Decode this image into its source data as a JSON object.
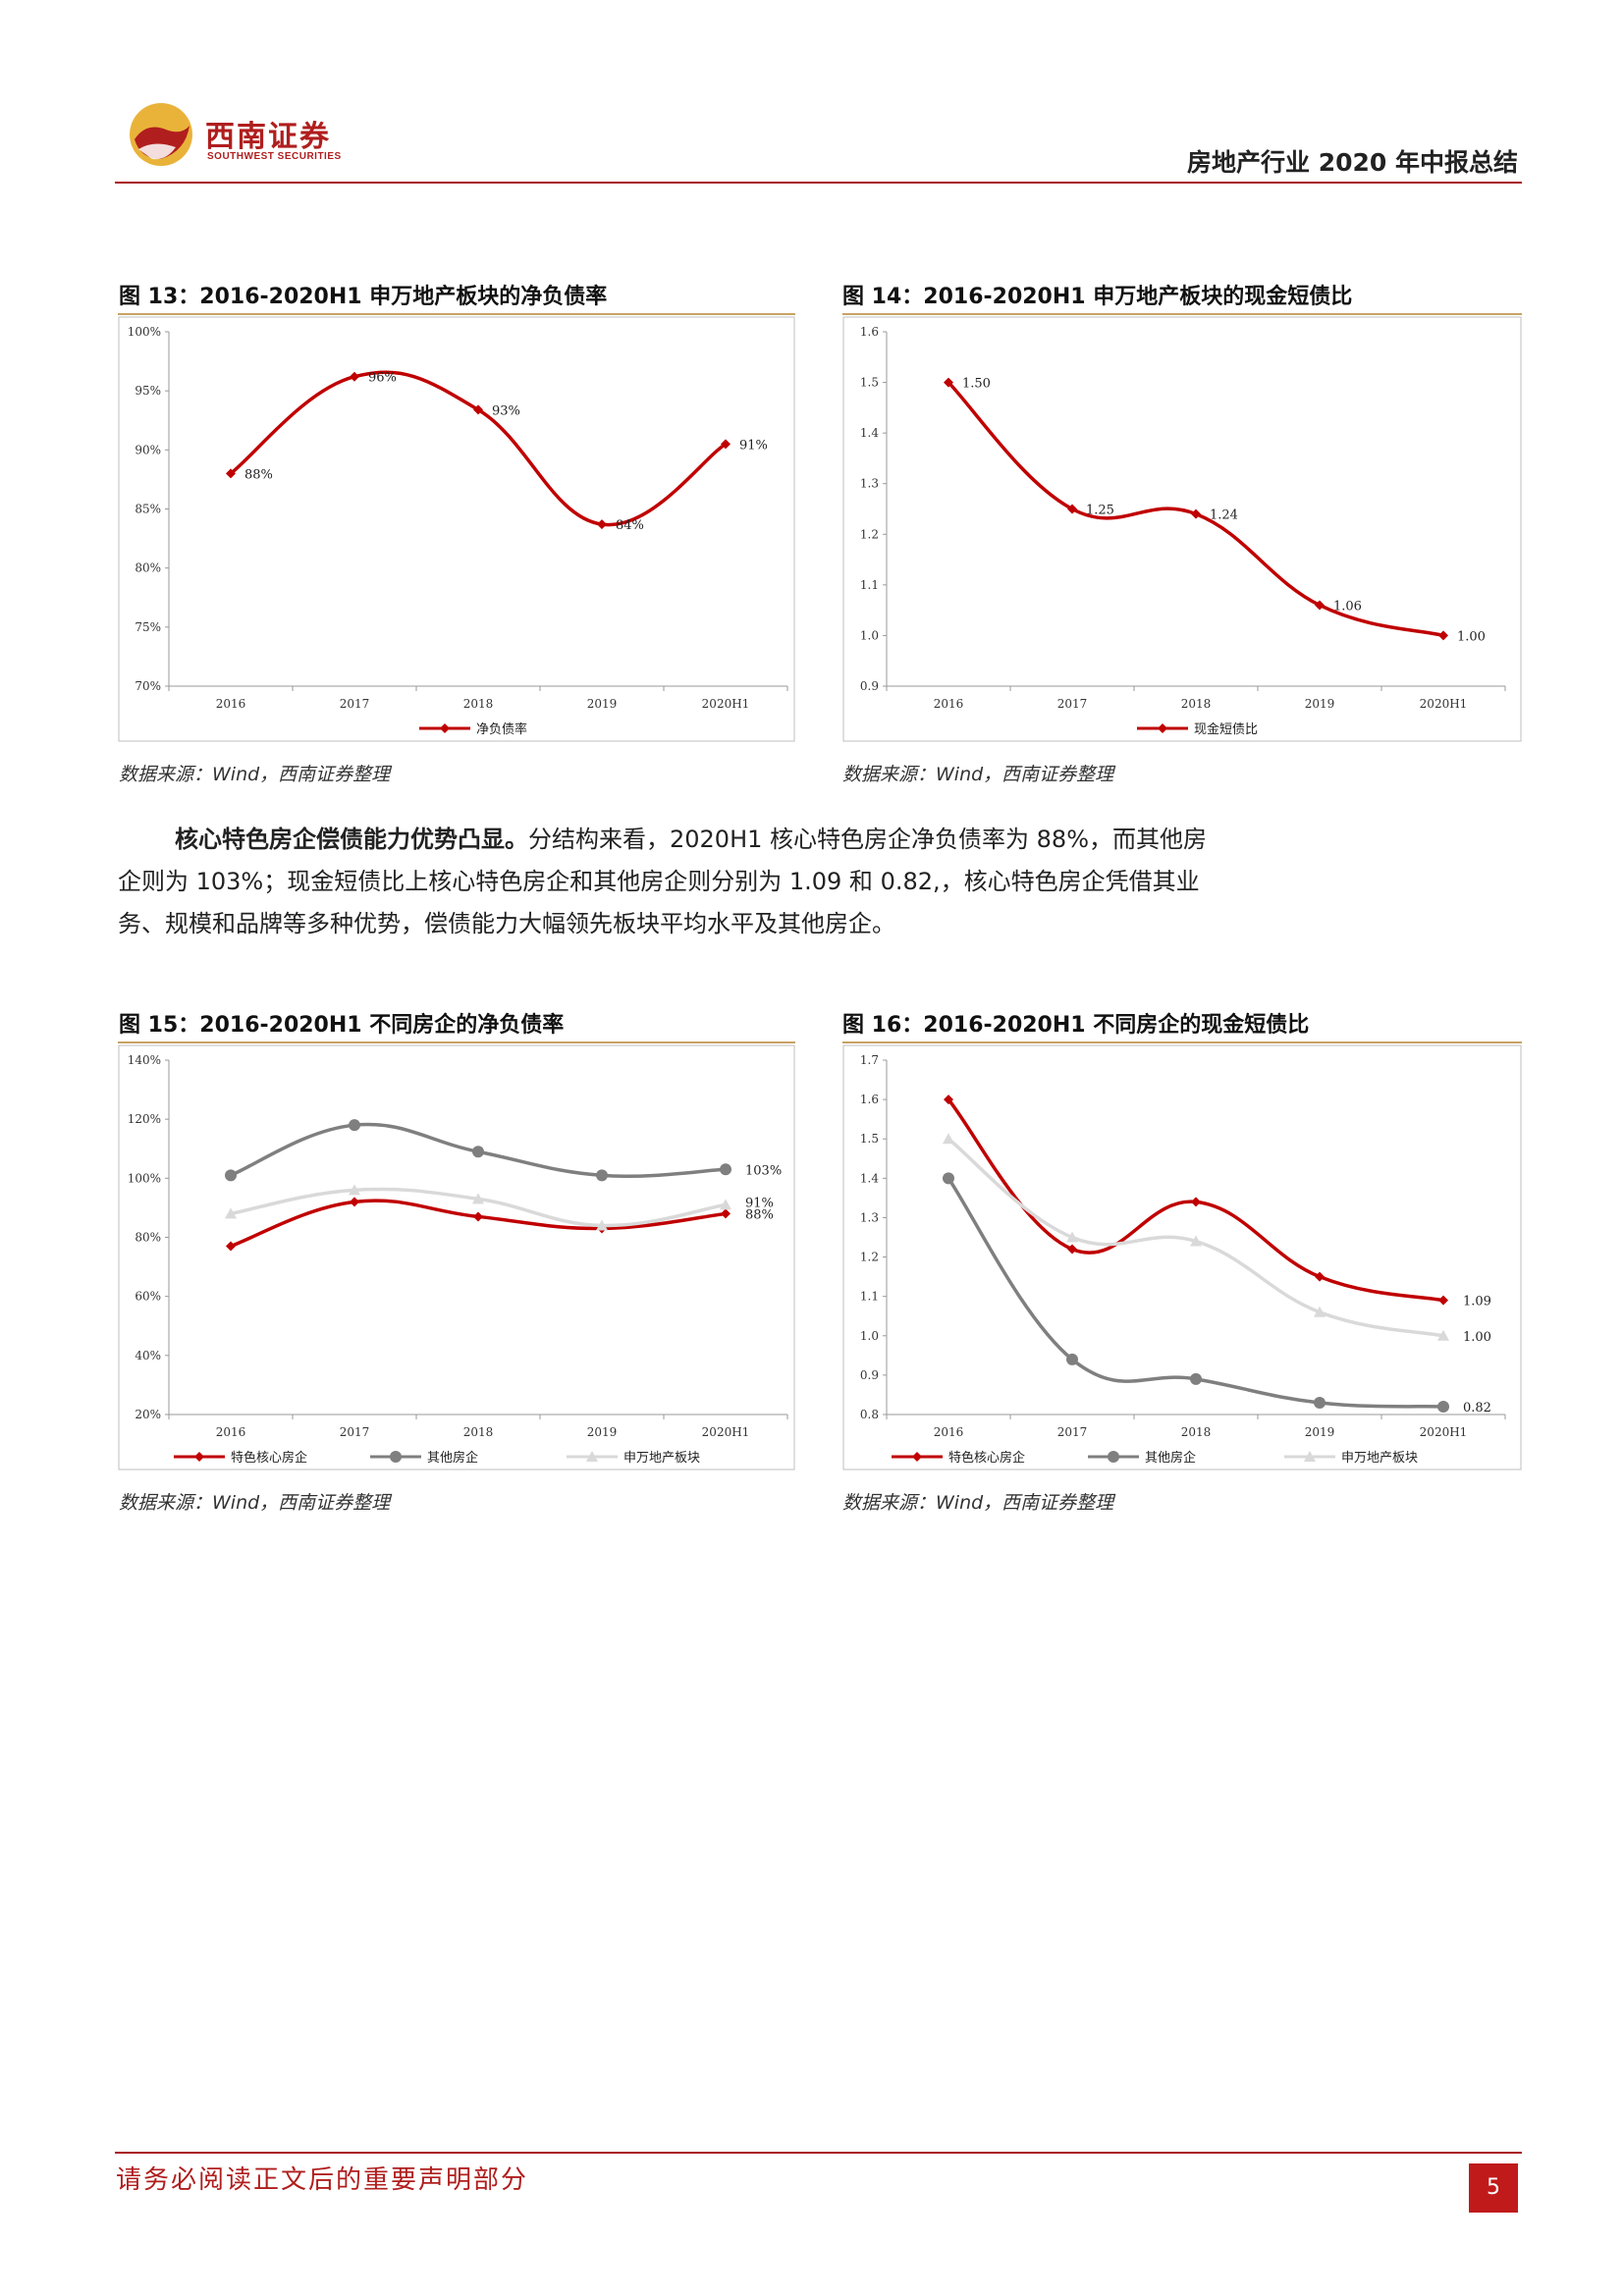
{
  "header": {
    "logo_cn": "西南证券",
    "logo_en": "SOUTHWEST SECURITIES",
    "doc_title": "房地产行业 2020 年中报总结"
  },
  "figures": [
    {
      "title": "图 13：2016-2020H1 申万地产板块的净负债率",
      "source": "数据来源：Wind，西南证券整理"
    },
    {
      "title": "图 14：2016-2020H1 申万地产板块的现金短债比",
      "source": "数据来源：Wind，西南证券整理"
    },
    {
      "title": "图 15：2016-2020H1 不同房企的净负债率",
      "source": "数据来源：Wind，西南证券整理"
    },
    {
      "title": "图 16：2016-2020H1 不同房企的现金短债比",
      "source": "数据来源：Wind，西南证券整理"
    }
  ],
  "paragraph": {
    "lead": "核心特色房企偿债能力优势凸显。",
    "body": "分结构来看，2020H1 核心特色房企净负债率为 88%，而其他房企则为 103%；现金短债比上核心特色房企和其他房企则分别为 1.09 和 0.82,，核心特色房企凭借其业务、规模和品牌等多种优势，偿债能力大幅领先板块平均水平及其他房企。"
  },
  "chart_data": [
    {
      "type": "line",
      "categories": [
        "2016",
        "2017",
        "2018",
        "2019",
        "2020H1"
      ],
      "y_ticks": [
        "70%",
        "75%",
        "80%",
        "85%",
        "90%",
        "95%",
        "100%"
      ],
      "ylim": [
        70,
        100
      ],
      "series": [
        {
          "name": "净负债率",
          "values": [
            88,
            96.2,
            93.4,
            83.7,
            90.5
          ],
          "labels": [
            "88%",
            "96%",
            "93%",
            "84%",
            "91%"
          ],
          "color": "#c00000",
          "marker": "diamond"
        }
      ],
      "legend": "bottom"
    },
    {
      "type": "line",
      "categories": [
        "2016",
        "2017",
        "2018",
        "2019",
        "2020H1"
      ],
      "y_ticks": [
        "0.9",
        "1.0",
        "1.1",
        "1.2",
        "1.3",
        "1.4",
        "1.5",
        "1.6"
      ],
      "ylim": [
        0.9,
        1.6
      ],
      "series": [
        {
          "name": "现金短债比",
          "values": [
            1.5,
            1.25,
            1.24,
            1.06,
            1.0
          ],
          "labels": [
            "1.50",
            "1.25",
            "1.24",
            "1.06",
            "1.00"
          ],
          "color": "#c00000",
          "marker": "diamond"
        }
      ],
      "legend": "bottom"
    },
    {
      "type": "line",
      "categories": [
        "2016",
        "2017",
        "2018",
        "2019",
        "2020H1"
      ],
      "y_ticks": [
        "20%",
        "40%",
        "60%",
        "80%",
        "100%",
        "120%",
        "140%"
      ],
      "ylim": [
        20,
        140
      ],
      "series": [
        {
          "name": "特色核心房企",
          "values": [
            77,
            92,
            87,
            83,
            88
          ],
          "end_label": "88%",
          "color": "#c00000",
          "marker": "diamond"
        },
        {
          "name": "其他房企",
          "values": [
            101,
            118,
            109,
            101,
            103
          ],
          "end_label": "103%",
          "color": "#7f7f7f",
          "marker": "circle"
        },
        {
          "name": "申万地产板块",
          "values": [
            88,
            96,
            93,
            84,
            91
          ],
          "end_label": "91%",
          "color": "#d9d9d9",
          "marker": "triangle"
        }
      ],
      "legend": "bottom"
    },
    {
      "type": "line",
      "categories": [
        "2016",
        "2017",
        "2018",
        "2019",
        "2020H1"
      ],
      "y_ticks": [
        "0.8",
        "0.9",
        "1.0",
        "1.1",
        "1.2",
        "1.3",
        "1.4",
        "1.5",
        "1.6",
        "1.7"
      ],
      "ylim": [
        0.8,
        1.7
      ],
      "series": [
        {
          "name": "特色核心房企",
          "values": [
            1.6,
            1.22,
            1.34,
            1.15,
            1.09
          ],
          "end_label": "1.09",
          "color": "#c00000",
          "marker": "diamond"
        },
        {
          "name": "其他房企",
          "values": [
            1.4,
            0.94,
            0.89,
            0.83,
            0.82
          ],
          "end_label": "0.82",
          "color": "#7f7f7f",
          "marker": "circle"
        },
        {
          "name": "申万地产板块",
          "values": [
            1.5,
            1.25,
            1.24,
            1.06,
            1.0
          ],
          "end_label": "1.00",
          "color": "#d9d9d9",
          "marker": "triangle"
        }
      ],
      "legend": "bottom"
    }
  ],
  "footer": {
    "disclaimer": "请务必阅读正文后的重要声明部分",
    "page": "5"
  }
}
